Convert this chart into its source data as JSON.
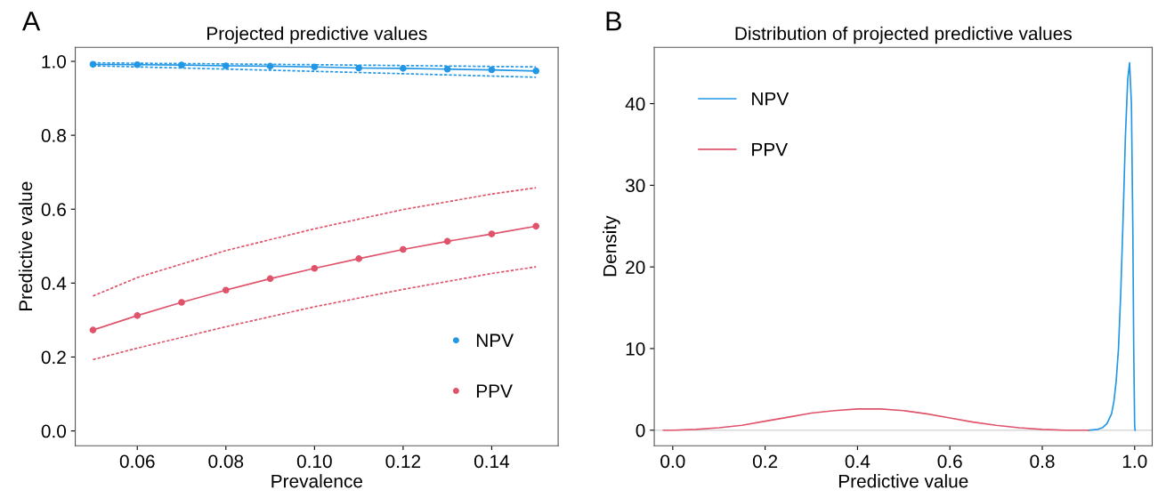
{
  "chart_data": [
    {
      "type": "line",
      "title": "Projected predictive values",
      "xlabel": "Prevalence",
      "ylabel": "Predictive value",
      "annotations": [
        "A"
      ],
      "x": [
        0.05,
        0.06,
        0.07,
        0.08,
        0.09,
        0.1,
        0.11,
        0.12,
        0.13,
        0.14,
        0.15
      ],
      "series": [
        {
          "name": "NPV",
          "color": "#2297e6",
          "marker": "circle",
          "line_style": "solid",
          "values": [
            0.992,
            0.991,
            0.99,
            0.988,
            0.987,
            0.985,
            0.982,
            0.981,
            0.979,
            0.977,
            0.974
          ]
        },
        {
          "color": "#2297e6",
          "marker": "none",
          "line_style": "dashed",
          "x": [
            0.05,
            0.1,
            0.15
          ],
          "values": [
            0.996,
            0.991,
            0.985
          ]
        },
        {
          "color": "#2297e6",
          "marker": "none",
          "line_style": "dashed",
          "x": [
            0.05,
            0.1,
            0.15
          ],
          "values": [
            0.988,
            0.973,
            0.957
          ]
        },
        {
          "name": "PPV",
          "color": "#df536b",
          "marker": "circle",
          "line_style": "solid",
          "values": [
            0.273,
            0.312,
            0.348,
            0.381,
            0.412,
            0.44,
            0.466,
            0.491,
            0.513,
            0.533,
            0.554
          ]
        },
        {
          "color": "#df536b",
          "marker": "none",
          "line_style": "dashed",
          "x": [
            0.05,
            0.06,
            0.08,
            0.1,
            0.12,
            0.14,
            0.15
          ],
          "values": [
            0.365,
            0.415,
            0.488,
            0.547,
            0.599,
            0.641,
            0.658
          ]
        },
        {
          "color": "#df536b",
          "marker": "none",
          "line_style": "dashed",
          "x": [
            0.05,
            0.06,
            0.08,
            0.1,
            0.12,
            0.14,
            0.15
          ],
          "values": [
            0.193,
            0.224,
            0.282,
            0.336,
            0.383,
            0.426,
            0.444
          ]
        }
      ],
      "xlim": [
        0.046,
        0.155
      ],
      "xticks": [
        0.06,
        0.08,
        {
          "value": 0.1,
          "label": "0.10"
        },
        0.12,
        0.14
      ],
      "ylim": [
        -0.04,
        1.038
      ],
      "yticks": [
        {
          "value": 0.0,
          "label": "0.0"
        },
        0.2,
        0.4,
        0.6,
        0.8,
        {
          "value": 1.0,
          "label": "1.0"
        }
      ],
      "grid": false,
      "legend": "bottom right"
    },
    {
      "type": "line",
      "title": "Distribution of projected predictive values",
      "xlabel": "Predictive value",
      "ylabel": "Density",
      "annotations": [
        "B"
      ],
      "series": [
        {
          "name": "NPV",
          "color": "#2297e6",
          "marker": "none",
          "line_style": "solid",
          "x": [
            0.9,
            0.92,
            0.93,
            0.94,
            0.95,
            0.955,
            0.96,
            0.965,
            0.97,
            0.975,
            0.98,
            0.985,
            0.989,
            0.993,
            0.996,
            0.998,
            1.0,
            1.001
          ],
          "values": [
            0,
            0.1,
            0.3,
            0.8,
            2,
            3.5,
            6,
            10,
            17,
            26,
            36,
            43,
            45,
            40,
            25,
            10,
            0.5,
            0
          ]
        },
        {
          "name": "PPV",
          "color": "#df536b",
          "marker": "none",
          "line_style": "solid",
          "x": [
            -0.02,
            0.0,
            0.05,
            0.1,
            0.15,
            0.2,
            0.25,
            0.3,
            0.35,
            0.4,
            0.45,
            0.5,
            0.55,
            0.6,
            0.65,
            0.7,
            0.75,
            0.8,
            0.85,
            0.9
          ],
          "values": [
            0,
            0,
            0.1,
            0.3,
            0.6,
            1.1,
            1.6,
            2.1,
            2.4,
            2.6,
            2.6,
            2.4,
            2.0,
            1.5,
            1.0,
            0.6,
            0.3,
            0.1,
            0,
            0
          ]
        }
      ],
      "ref_lines": [
        {
          "axis": "y",
          "value": 0,
          "color": "#d9d9d9",
          "line_style": "solid"
        }
      ],
      "xlim": [
        -0.04,
        1.038
      ],
      "xticks": [
        {
          "value": 0.0,
          "label": "0.0"
        },
        0.2,
        0.4,
        0.6,
        0.8,
        {
          "value": 1.0,
          "label": "1.0"
        }
      ],
      "ylim": [
        -1.9,
        46.9
      ],
      "yticks": [
        0,
        10,
        20,
        30,
        40
      ],
      "grid": false,
      "legend": "top left"
    }
  ]
}
